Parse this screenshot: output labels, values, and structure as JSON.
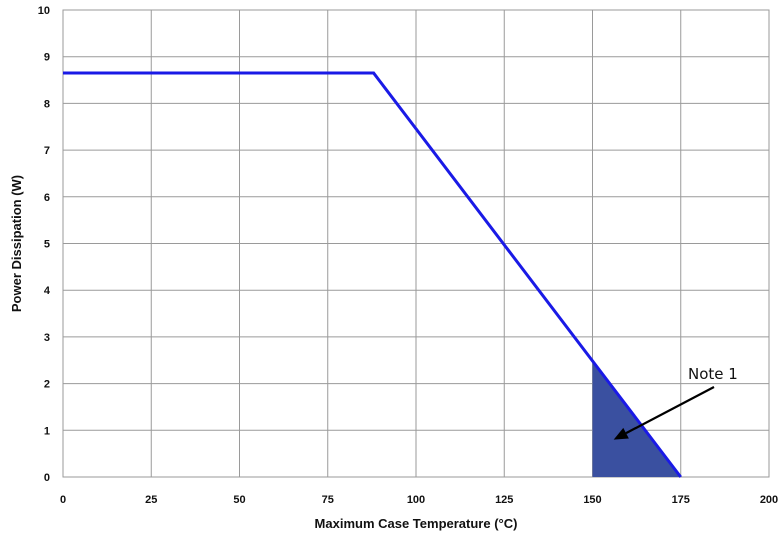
{
  "chart_data": {
    "type": "line",
    "xlabel": "Maximum Case Temperature (°C)",
    "ylabel": "Power Dissipation (W)",
    "xlim": [
      0,
      200
    ],
    "ylim": [
      0,
      10
    ],
    "x_ticks": [
      0,
      25,
      50,
      75,
      100,
      125,
      150,
      175,
      200
    ],
    "y_ticks": [
      0,
      1,
      2,
      3,
      4,
      5,
      6,
      7,
      8,
      9,
      10
    ],
    "grid": true,
    "series": [
      {
        "points": [
          [
            0,
            8.65
          ],
          [
            88,
            8.65
          ],
          [
            175,
            0
          ]
        ],
        "color": "#1a1ae6"
      }
    ],
    "shaded_region": {
      "points": [
        [
          150,
          0
        ],
        [
          150,
          2.49
        ],
        [
          175,
          0
        ]
      ],
      "color": "#3a50a0"
    },
    "annotation": {
      "text": "Note 1",
      "arrow_tip": [
        156,
        0.8
      ]
    }
  }
}
